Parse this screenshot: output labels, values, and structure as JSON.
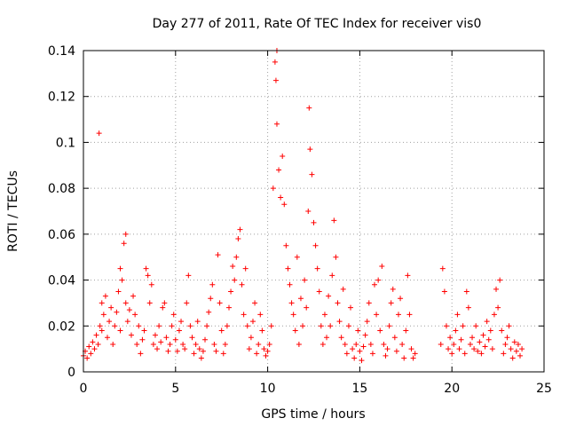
{
  "chart_data": {
    "type": "scatter",
    "title": "Day 277 of 2011, Rate Of TEC Index for receiver vis0",
    "xlabel": "GPS time / hours",
    "ylabel": "ROTI / TECUs",
    "xlim": [
      0,
      25
    ],
    "ylim": [
      0,
      0.14
    ],
    "x_ticks": [
      0,
      5,
      10,
      15,
      20,
      25
    ],
    "y_ticks": [
      0,
      0.02,
      0.04,
      0.06,
      0.08,
      0.1,
      0.12,
      0.14
    ],
    "x_tick_labels": [
      "0",
      "5",
      "10",
      "15",
      "20",
      "25"
    ],
    "y_tick_labels": [
      "0",
      "0.02",
      "0.04",
      "0.06",
      "0.08",
      "0.1",
      "0.12",
      "0.14"
    ],
    "grid": true,
    "marker": "plus",
    "color": "#ff0000",
    "series": [
      {
        "points": [
          [
            0.0,
            0.007
          ],
          [
            0.1,
            0.009
          ],
          [
            0.2,
            0.006
          ],
          [
            0.3,
            0.011
          ],
          [
            0.4,
            0.008
          ],
          [
            0.5,
            0.013
          ],
          [
            0.6,
            0.01
          ],
          [
            0.7,
            0.016
          ],
          [
            0.8,
            0.012
          ],
          [
            0.85,
            0.104
          ],
          [
            0.9,
            0.02
          ],
          [
            1.0,
            0.018
          ],
          [
            1.0,
            0.03
          ],
          [
            1.1,
            0.025
          ],
          [
            1.2,
            0.033
          ],
          [
            1.3,
            0.015
          ],
          [
            1.4,
            0.022
          ],
          [
            1.5,
            0.028
          ],
          [
            1.6,
            0.012
          ],
          [
            1.7,
            0.02
          ],
          [
            1.8,
            0.026
          ],
          [
            1.9,
            0.035
          ],
          [
            2.0,
            0.045
          ],
          [
            2.0,
            0.018
          ],
          [
            2.1,
            0.04
          ],
          [
            2.2,
            0.056
          ],
          [
            2.3,
            0.06
          ],
          [
            2.3,
            0.03
          ],
          [
            2.4,
            0.022
          ],
          [
            2.5,
            0.027
          ],
          [
            2.6,
            0.016
          ],
          [
            2.7,
            0.033
          ],
          [
            2.8,
            0.025
          ],
          [
            2.9,
            0.012
          ],
          [
            3.0,
            0.02
          ],
          [
            3.1,
            0.008
          ],
          [
            3.2,
            0.014
          ],
          [
            3.3,
            0.018
          ],
          [
            3.4,
            0.045
          ],
          [
            3.5,
            0.042
          ],
          [
            3.6,
            0.03
          ],
          [
            3.7,
            0.038
          ],
          [
            3.8,
            0.012
          ],
          [
            3.9,
            0.016
          ],
          [
            4.0,
            0.01
          ],
          [
            4.1,
            0.02
          ],
          [
            4.2,
            0.013
          ],
          [
            4.3,
            0.028
          ],
          [
            4.4,
            0.03
          ],
          [
            4.5,
            0.015
          ],
          [
            4.6,
            0.009
          ],
          [
            4.7,
            0.012
          ],
          [
            4.8,
            0.02
          ],
          [
            4.9,
            0.025
          ],
          [
            5.0,
            0.014
          ],
          [
            5.1,
            0.009
          ],
          [
            5.2,
            0.018
          ],
          [
            5.3,
            0.022
          ],
          [
            5.4,
            0.012
          ],
          [
            5.5,
            0.01
          ],
          [
            5.6,
            0.03
          ],
          [
            5.7,
            0.042
          ],
          [
            5.8,
            0.02
          ],
          [
            5.9,
            0.015
          ],
          [
            6.0,
            0.008
          ],
          [
            6.1,
            0.012
          ],
          [
            6.2,
            0.022
          ],
          [
            6.3,
            0.01
          ],
          [
            6.4,
            0.006
          ],
          [
            6.5,
            0.009
          ],
          [
            6.6,
            0.014
          ],
          [
            6.7,
            0.02
          ],
          [
            6.8,
            0.026
          ],
          [
            6.9,
            0.032
          ],
          [
            7.0,
            0.038
          ],
          [
            7.1,
            0.012
          ],
          [
            7.2,
            0.009
          ],
          [
            7.3,
            0.051
          ],
          [
            7.4,
            0.03
          ],
          [
            7.5,
            0.018
          ],
          [
            7.6,
            0.008
          ],
          [
            7.7,
            0.012
          ],
          [
            7.8,
            0.02
          ],
          [
            7.9,
            0.028
          ],
          [
            8.0,
            0.035
          ],
          [
            8.1,
            0.046
          ],
          [
            8.2,
            0.04
          ],
          [
            8.3,
            0.05
          ],
          [
            8.4,
            0.058
          ],
          [
            8.5,
            0.062
          ],
          [
            8.6,
            0.038
          ],
          [
            8.7,
            0.025
          ],
          [
            8.8,
            0.045
          ],
          [
            8.9,
            0.02
          ],
          [
            9.0,
            0.01
          ],
          [
            9.1,
            0.015
          ],
          [
            9.2,
            0.022
          ],
          [
            9.3,
            0.03
          ],
          [
            9.4,
            0.008
          ],
          [
            9.5,
            0.012
          ],
          [
            9.6,
            0.025
          ],
          [
            9.7,
            0.018
          ],
          [
            9.8,
            0.01
          ],
          [
            9.9,
            0.007
          ],
          [
            10.0,
            0.009
          ],
          [
            10.1,
            0.012
          ],
          [
            10.2,
            0.02
          ],
          [
            10.3,
            0.08
          ],
          [
            10.4,
            0.135
          ],
          [
            10.45,
            0.127
          ],
          [
            10.5,
            0.14
          ],
          [
            10.5,
            0.108
          ],
          [
            10.6,
            0.088
          ],
          [
            10.7,
            0.076
          ],
          [
            10.8,
            0.094
          ],
          [
            10.9,
            0.073
          ],
          [
            11.0,
            0.055
          ],
          [
            11.1,
            0.045
          ],
          [
            11.2,
            0.038
          ],
          [
            11.3,
            0.03
          ],
          [
            11.4,
            0.025
          ],
          [
            11.5,
            0.018
          ],
          [
            11.6,
            0.05
          ],
          [
            11.7,
            0.012
          ],
          [
            11.8,
            0.032
          ],
          [
            11.9,
            0.02
          ],
          [
            12.0,
            0.04
          ],
          [
            12.1,
            0.028
          ],
          [
            12.2,
            0.07
          ],
          [
            12.25,
            0.115
          ],
          [
            12.3,
            0.097
          ],
          [
            12.4,
            0.086
          ],
          [
            12.5,
            0.065
          ],
          [
            12.6,
            0.055
          ],
          [
            12.7,
            0.045
          ],
          [
            12.8,
            0.035
          ],
          [
            12.9,
            0.02
          ],
          [
            13.0,
            0.012
          ],
          [
            13.1,
            0.025
          ],
          [
            13.2,
            0.015
          ],
          [
            13.3,
            0.033
          ],
          [
            13.4,
            0.02
          ],
          [
            13.5,
            0.042
          ],
          [
            13.6,
            0.066
          ],
          [
            13.7,
            0.05
          ],
          [
            13.8,
            0.03
          ],
          [
            13.9,
            0.022
          ],
          [
            14.0,
            0.015
          ],
          [
            14.1,
            0.036
          ],
          [
            14.2,
            0.012
          ],
          [
            14.3,
            0.008
          ],
          [
            14.4,
            0.02
          ],
          [
            14.5,
            0.028
          ],
          [
            14.6,
            0.01
          ],
          [
            14.7,
            0.006
          ],
          [
            14.8,
            0.012
          ],
          [
            14.9,
            0.018
          ],
          [
            15.0,
            0.009
          ],
          [
            15.1,
            0.005
          ],
          [
            15.2,
            0.011
          ],
          [
            15.3,
            0.016
          ],
          [
            15.4,
            0.022
          ],
          [
            15.5,
            0.03
          ],
          [
            15.6,
            0.012
          ],
          [
            15.7,
            0.008
          ],
          [
            15.8,
            0.038
          ],
          [
            15.9,
            0.025
          ],
          [
            16.0,
            0.04
          ],
          [
            16.1,
            0.018
          ],
          [
            16.2,
            0.046
          ],
          [
            16.3,
            0.012
          ],
          [
            16.4,
            0.007
          ],
          [
            16.5,
            0.01
          ],
          [
            16.6,
            0.02
          ],
          [
            16.7,
            0.03
          ],
          [
            16.8,
            0.036
          ],
          [
            16.9,
            0.015
          ],
          [
            17.0,
            0.009
          ],
          [
            17.1,
            0.025
          ],
          [
            17.2,
            0.032
          ],
          [
            17.3,
            0.012
          ],
          [
            17.4,
            0.006
          ],
          [
            17.5,
            0.018
          ],
          [
            17.6,
            0.042
          ],
          [
            17.7,
            0.025
          ],
          [
            17.8,
            0.01
          ],
          [
            17.9,
            0.006
          ],
          [
            18.0,
            0.008
          ],
          [
            19.4,
            0.012
          ],
          [
            19.5,
            0.045
          ],
          [
            19.6,
            0.035
          ],
          [
            19.7,
            0.02
          ],
          [
            19.8,
            0.01
          ],
          [
            19.9,
            0.015
          ],
          [
            20.0,
            0.008
          ],
          [
            20.1,
            0.012
          ],
          [
            20.2,
            0.018
          ],
          [
            20.3,
            0.025
          ],
          [
            20.4,
            0.01
          ],
          [
            20.5,
            0.014
          ],
          [
            20.6,
            0.02
          ],
          [
            20.7,
            0.008
          ],
          [
            20.8,
            0.035
          ],
          [
            20.9,
            0.028
          ],
          [
            21.0,
            0.012
          ],
          [
            21.1,
            0.015
          ],
          [
            21.2,
            0.01
          ],
          [
            21.3,
            0.02
          ],
          [
            21.4,
            0.009
          ],
          [
            21.5,
            0.013
          ],
          [
            21.6,
            0.008
          ],
          [
            21.7,
            0.016
          ],
          [
            21.8,
            0.011
          ],
          [
            21.9,
            0.022
          ],
          [
            22.0,
            0.014
          ],
          [
            22.1,
            0.018
          ],
          [
            22.2,
            0.01
          ],
          [
            22.3,
            0.025
          ],
          [
            22.4,
            0.036
          ],
          [
            22.5,
            0.028
          ],
          [
            22.6,
            0.04
          ],
          [
            22.7,
            0.018
          ],
          [
            22.8,
            0.008
          ],
          [
            22.9,
            0.012
          ],
          [
            23.0,
            0.015
          ],
          [
            23.1,
            0.02
          ],
          [
            23.2,
            0.01
          ],
          [
            23.3,
            0.006
          ],
          [
            23.4,
            0.013
          ],
          [
            23.5,
            0.009
          ],
          [
            23.6,
            0.012
          ],
          [
            23.7,
            0.007
          ],
          [
            23.8,
            0.01
          ]
        ]
      }
    ]
  }
}
